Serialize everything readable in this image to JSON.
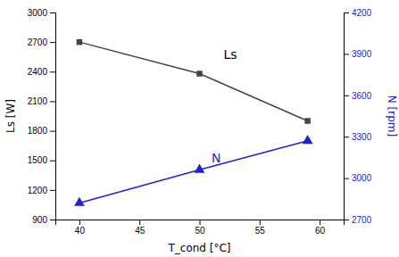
{
  "chart_data": {
    "type": "line",
    "x": [
      40,
      50,
      59
    ],
    "series": [
      {
        "name": "Ls",
        "color": "#444444",
        "marker": "square",
        "values": [
          2700,
          2380,
          1900
        ]
      },
      {
        "name": "N",
        "color": "#2222cc",
        "marker": "triangle",
        "axis": "y2",
        "values": [
          2820,
          3060,
          3270
        ]
      }
    ],
    "xlabel": "T_cond [°C]",
    "ylabel": "Ls [W]",
    "y2label": "N [rpm]",
    "xlim": [
      38,
      62
    ],
    "ylim": [
      900,
      3000
    ],
    "y2lim": [
      2700,
      4200
    ],
    "xticks": [
      40,
      45,
      50,
      55,
      60
    ],
    "yticks": [
      900,
      1200,
      1500,
      1800,
      2100,
      2400,
      2700,
      3000
    ],
    "y2ticks": [
      2700,
      3000,
      3300,
      3600,
      3900,
      4200
    ],
    "annotations": [
      {
        "text": "Ls",
        "x": 52,
        "y": 2530,
        "color": "#000000"
      },
      {
        "text": "N",
        "x": 51,
        "y": 1480,
        "color": "#2222cc"
      }
    ]
  }
}
